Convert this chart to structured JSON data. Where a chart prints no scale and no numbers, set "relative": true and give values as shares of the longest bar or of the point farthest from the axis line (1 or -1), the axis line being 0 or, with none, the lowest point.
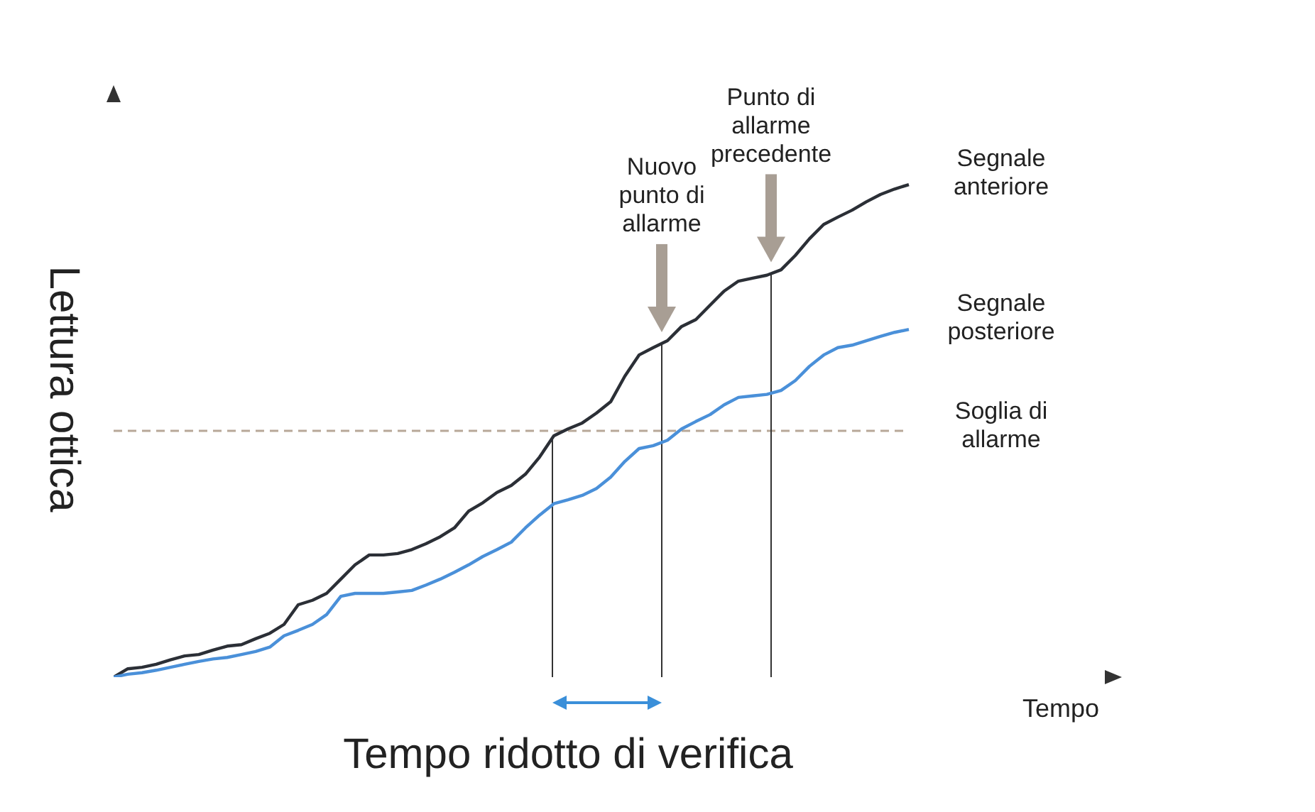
{
  "chart_data": {
    "type": "line",
    "relative": true,
    "xlabel": "Tempo",
    "ylabel": "Lettura ottica",
    "grid": false,
    "legend": false,
    "marker": "none",
    "line_style": "solid",
    "annotations": [
      "Nuovo punto di allarme",
      "Punto di allarme precedente",
      "Tempo ridotto di verifica"
    ],
    "categories": [
      null,
      null,
      null,
      null,
      null,
      null,
      null,
      null,
      null,
      null,
      null,
      null,
      null,
      null,
      null,
      null,
      null,
      null,
      null,
      null,
      null,
      null,
      null,
      null,
      null,
      null,
      null,
      null,
      null,
      null,
      null,
      null,
      null,
      null,
      null,
      null,
      null,
      null,
      null,
      null,
      null,
      null,
      null,
      null,
      null,
      null,
      null,
      null,
      null,
      null,
      null,
      null,
      null,
      null,
      null,
      null,
      null
    ],
    "series": [
      {
        "name": "Segnale anteriore",
        "color": "#2b2f36",
        "values": [
          0,
          0.017,
          0.02,
          0.026,
          0.035,
          0.043,
          0.046,
          0.055,
          0.063,
          0.066,
          0.078,
          0.089,
          0.107,
          0.147,
          0.156,
          0.17,
          0.199,
          0.228,
          0.248,
          0.248,
          0.251,
          0.259,
          0.271,
          0.285,
          0.303,
          0.337,
          0.354,
          0.375,
          0.389,
          0.412,
          0.447,
          0.49,
          0.504,
          0.516,
          0.536,
          0.559,
          0.611,
          0.654,
          0.669,
          0.683,
          0.712,
          0.726,
          0.755,
          0.784,
          0.804,
          0.81,
          0.816,
          0.827,
          0.856,
          0.89,
          0.919,
          0.934,
          0.948,
          0.965,
          0.98,
          0.991,
          1
        ]
      },
      {
        "name": "Segnale posteriore",
        "color": "#4a90d9",
        "values": [
          0,
          0.006,
          0.009,
          0.014,
          0.02,
          0.026,
          0.032,
          0.037,
          0.04,
          0.046,
          0.052,
          0.061,
          0.084,
          0.095,
          0.107,
          0.127,
          0.164,
          0.17,
          0.17,
          0.17,
          0.173,
          0.176,
          0.187,
          0.199,
          0.213,
          0.228,
          0.245,
          0.259,
          0.274,
          0.303,
          0.329,
          0.352,
          0.36,
          0.369,
          0.383,
          0.406,
          0.438,
          0.464,
          0.47,
          0.481,
          0.504,
          0.519,
          0.533,
          0.553,
          0.568,
          0.571,
          0.574,
          0.582,
          0.602,
          0.631,
          0.654,
          0.669,
          0.674,
          0.683,
          0.692,
          0.7,
          0.706
        ]
      }
    ],
    "ref_lines": [
      {
        "axis": "y",
        "value": 0.5,
        "label": "Soglia di allarme",
        "color": "#b8a898",
        "line_style": "dashed"
      }
    ]
  }
}
